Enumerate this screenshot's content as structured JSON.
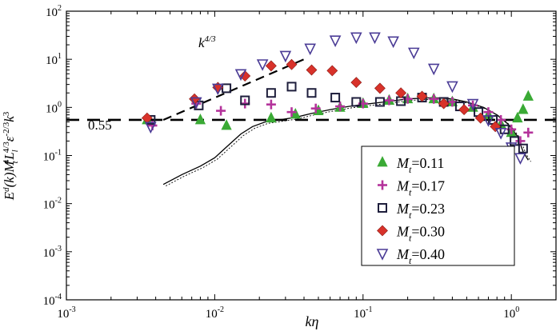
{
  "chart_data": {
    "type": "scatter",
    "title": "",
    "xlabel": "kη",
    "ylabel": "E^d(k) M_t^4 L_l^(4/3) ε^(-2/3) k^3",
    "xscale": "log",
    "yscale": "log",
    "xlim": [
      0.001,
      2
    ],
    "ylim": [
      0.0001,
      100
    ],
    "x_ticks": [
      {
        "value": 0.001,
        "base": "10",
        "exp": "-3"
      },
      {
        "value": 0.01,
        "base": "10",
        "exp": "-2"
      },
      {
        "value": 0.1,
        "base": "10",
        "exp": "-1"
      },
      {
        "value": 1,
        "base": "10",
        "exp": "0"
      }
    ],
    "y_ticks": [
      {
        "value": 0.0001,
        "base": "10",
        "exp": "-4"
      },
      {
        "value": 0.001,
        "base": "10",
        "exp": "-3"
      },
      {
        "value": 0.01,
        "base": "10",
        "exp": "-2"
      },
      {
        "value": 0.1,
        "base": "10",
        "exp": "-1"
      },
      {
        "value": 1,
        "base": "10",
        "exp": "0"
      },
      {
        "value": 10,
        "base": "10",
        "exp": "1"
      },
      {
        "value": 100,
        "base": "10",
        "exp": "2"
      }
    ],
    "reference_line": {
      "y": 0.55,
      "label": "0.55"
    },
    "slope_line": {
      "label_base": "k",
      "label_exp": "4/3",
      "x": [
        0.0045,
        0.043
      ],
      "y": [
        0.55,
        11
      ]
    },
    "series": [
      {
        "name": "Mt=0.11",
        "mt": "0.11",
        "marker": "triangle",
        "color": "#3aaa35",
        "x": [
          0.0035,
          0.008,
          0.012,
          0.024,
          0.035,
          0.05,
          0.07,
          0.1,
          0.15,
          0.2,
          0.3,
          0.4,
          0.55,
          0.7,
          0.85,
          1.0,
          1.1,
          1.2,
          1.3
        ],
        "y": [
          0.55,
          0.55,
          0.42,
          0.6,
          0.72,
          0.85,
          1.0,
          1.2,
          1.4,
          1.5,
          1.5,
          1.3,
          1.0,
          0.7,
          0.45,
          0.3,
          0.6,
          0.9,
          1.7
        ]
      },
      {
        "name": "Mt=0.17",
        "mt": "0.17",
        "marker": "plus",
        "color": "#b4339b",
        "x": [
          0.0038,
          0.0075,
          0.011,
          0.016,
          0.024,
          0.033,
          0.048,
          0.07,
          0.1,
          0.15,
          0.2,
          0.3,
          0.4,
          0.55,
          0.7,
          0.85,
          1.0,
          1.15,
          1.3
        ],
        "y": [
          0.42,
          1.2,
          0.85,
          1.2,
          1.15,
          0.8,
          0.95,
          1.05,
          1.2,
          1.4,
          1.5,
          1.5,
          1.3,
          1.1,
          0.8,
          0.55,
          0.35,
          0.2,
          0.3
        ]
      },
      {
        "name": "Mt=0.23",
        "mt": "0.23",
        "marker": "square",
        "color": "#1e1e3c",
        "x": [
          0.0037,
          0.0078,
          0.012,
          0.016,
          0.024,
          0.033,
          0.045,
          0.065,
          0.09,
          0.13,
          0.18,
          0.25,
          0.35,
          0.45,
          0.6,
          0.75,
          0.9,
          1.05,
          1.2
        ],
        "y": [
          0.55,
          1.1,
          2.5,
          1.4,
          2.0,
          2.7,
          2.0,
          1.6,
          1.3,
          1.3,
          1.35,
          1.6,
          1.3,
          1.05,
          0.8,
          0.55,
          0.35,
          0.2,
          0.14
        ]
      },
      {
        "name": "Mt=0.30",
        "mt": "0.30",
        "marker": "diamond",
        "color": "#d8322a",
        "x": [
          0.0035,
          0.0073,
          0.0105,
          0.016,
          0.024,
          0.033,
          0.045,
          0.062,
          0.09,
          0.13,
          0.18,
          0.25,
          0.35,
          0.48,
          0.62,
          0.78
        ],
        "y": [
          0.6,
          1.5,
          2.6,
          4.5,
          7.3,
          7.8,
          6.0,
          5.8,
          3.3,
          2.5,
          2.0,
          1.7,
          1.2,
          0.9,
          0.6,
          0.4
        ]
      },
      {
        "name": "Mt=0.40",
        "mt": "0.40",
        "marker": "triangle-down",
        "color": "#4b3c96",
        "x": [
          0.0037,
          0.0075,
          0.0105,
          0.015,
          0.021,
          0.03,
          0.044,
          0.065,
          0.09,
          0.12,
          0.16,
          0.22,
          0.3,
          0.4,
          0.55,
          0.7,
          0.85,
          1.0,
          1.15
        ],
        "y": [
          0.4,
          1.3,
          2.5,
          5.0,
          8.0,
          12.0,
          17.0,
          25.0,
          29.0,
          29.0,
          24.0,
          14.0,
          6.5,
          2.8,
          1.2,
          0.55,
          0.3,
          0.15,
          0.09
        ]
      }
    ],
    "dns_curve": {
      "x": [
        0.0045,
        0.006,
        0.008,
        0.01,
        0.012,
        0.015,
        0.018,
        0.022,
        0.027,
        0.035,
        0.045,
        0.06,
        0.08,
        0.1,
        0.14,
        0.2,
        0.3,
        0.4,
        0.5,
        0.65,
        0.8,
        0.95,
        1.1,
        1.2,
        1.3
      ],
      "y": [
        0.025,
        0.04,
        0.06,
        0.09,
        0.15,
        0.28,
        0.4,
        0.5,
        0.55,
        0.62,
        0.75,
        0.9,
        1.05,
        1.15,
        1.3,
        1.5,
        1.6,
        1.5,
        1.3,
        1.0,
        0.7,
        0.45,
        0.25,
        0.12,
        0.08
      ]
    }
  }
}
